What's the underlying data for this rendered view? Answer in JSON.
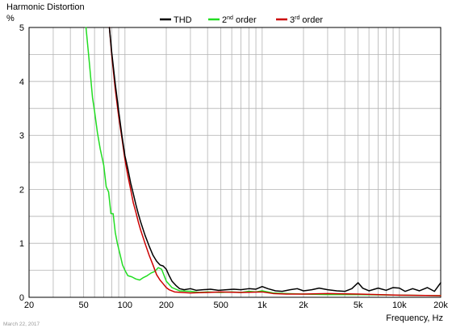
{
  "chart_data": {
    "type": "line",
    "title": "Harmonic Distortion",
    "ylabel": "%",
    "xlabel": "Frequency, Hz",
    "x_scale": "log",
    "xlim": [
      20,
      20000
    ],
    "ylim": [
      0,
      5
    ],
    "grid": true,
    "legend_position": "top-center",
    "date_note": "March 22, 2017",
    "x_ticks": [
      {
        "value": 20,
        "label": "20"
      },
      {
        "value": 50,
        "label": "50"
      },
      {
        "value": 100,
        "label": "100"
      },
      {
        "value": 200,
        "label": "200"
      },
      {
        "value": 500,
        "label": "500"
      },
      {
        "value": 1000,
        "label": "1k"
      },
      {
        "value": 2000,
        "label": "2k"
      },
      {
        "value": 5000,
        "label": "5k"
      },
      {
        "value": 10000,
        "label": "10k"
      },
      {
        "value": 20000,
        "label": "20k"
      }
    ],
    "y_ticks": [
      {
        "value": 0,
        "label": "0"
      },
      {
        "value": 1,
        "label": "1"
      },
      {
        "value": 2,
        "label": "2"
      },
      {
        "value": 3,
        "label": "3"
      },
      {
        "value": 4,
        "label": "4"
      },
      {
        "value": 5,
        "label": "5"
      }
    ],
    "series": [
      {
        "name": "THD",
        "legend_base": "THD",
        "legend_sup": "",
        "legend_suffix": "",
        "color": "#000000",
        "points": [
          [
            77,
            5.0
          ],
          [
            80,
            4.55
          ],
          [
            85,
            3.95
          ],
          [
            90,
            3.45
          ],
          [
            95,
            3.0
          ],
          [
            100,
            2.62
          ],
          [
            105,
            2.38
          ],
          [
            110,
            2.12
          ],
          [
            115,
            1.92
          ],
          [
            120,
            1.72
          ],
          [
            125,
            1.55
          ],
          [
            130,
            1.4
          ],
          [
            140,
            1.15
          ],
          [
            150,
            0.95
          ],
          [
            160,
            0.78
          ],
          [
            170,
            0.67
          ],
          [
            180,
            0.6
          ],
          [
            190,
            0.58
          ],
          [
            200,
            0.52
          ],
          [
            210,
            0.4
          ],
          [
            220,
            0.3
          ],
          [
            235,
            0.22
          ],
          [
            250,
            0.16
          ],
          [
            270,
            0.14
          ],
          [
            300,
            0.16
          ],
          [
            330,
            0.13
          ],
          [
            370,
            0.14
          ],
          [
            420,
            0.15
          ],
          [
            480,
            0.13
          ],
          [
            550,
            0.14
          ],
          [
            620,
            0.15
          ],
          [
            700,
            0.14
          ],
          [
            800,
            0.16
          ],
          [
            900,
            0.15
          ],
          [
            1000,
            0.2
          ],
          [
            1100,
            0.16
          ],
          [
            1250,
            0.12
          ],
          [
            1400,
            0.11
          ],
          [
            1600,
            0.14
          ],
          [
            1800,
            0.16
          ],
          [
            2000,
            0.12
          ],
          [
            2300,
            0.14
          ],
          [
            2600,
            0.17
          ],
          [
            3000,
            0.14
          ],
          [
            3500,
            0.12
          ],
          [
            4000,
            0.11
          ],
          [
            4500,
            0.16
          ],
          [
            5000,
            0.27
          ],
          [
            5400,
            0.17
          ],
          [
            6000,
            0.12
          ],
          [
            7000,
            0.17
          ],
          [
            8000,
            0.13
          ],
          [
            9000,
            0.18
          ],
          [
            10000,
            0.17
          ],
          [
            11000,
            0.11
          ],
          [
            12500,
            0.16
          ],
          [
            14000,
            0.12
          ],
          [
            16000,
            0.18
          ],
          [
            18000,
            0.11
          ],
          [
            20000,
            0.27
          ]
        ]
      },
      {
        "name": "2nd order",
        "legend_base": "2",
        "legend_sup": "nd",
        "legend_suffix": " order",
        "color": "#22dd22",
        "points": [
          [
            52,
            5.0
          ],
          [
            55,
            4.35
          ],
          [
            58,
            3.7
          ],
          [
            60,
            3.45
          ],
          [
            63,
            3.05
          ],
          [
            66,
            2.75
          ],
          [
            70,
            2.45
          ],
          [
            73,
            2.05
          ],
          [
            76,
            1.95
          ],
          [
            79,
            1.55
          ],
          [
            82,
            1.55
          ],
          [
            85,
            1.2
          ],
          [
            88,
            1.0
          ],
          [
            92,
            0.8
          ],
          [
            96,
            0.6
          ],
          [
            100,
            0.5
          ],
          [
            105,
            0.4
          ],
          [
            112,
            0.38
          ],
          [
            120,
            0.34
          ],
          [
            128,
            0.32
          ],
          [
            135,
            0.36
          ],
          [
            145,
            0.4
          ],
          [
            155,
            0.45
          ],
          [
            165,
            0.48
          ],
          [
            175,
            0.55
          ],
          [
            185,
            0.52
          ],
          [
            200,
            0.3
          ],
          [
            220,
            0.18
          ],
          [
            250,
            0.12
          ],
          [
            300,
            0.11
          ],
          [
            350,
            0.09
          ],
          [
            400,
            0.1
          ],
          [
            500,
            0.09
          ],
          [
            600,
            0.1
          ],
          [
            700,
            0.09
          ],
          [
            800,
            0.11
          ],
          [
            900,
            0.1
          ],
          [
            1000,
            0.12
          ],
          [
            1200,
            0.08
          ],
          [
            1500,
            0.07
          ],
          [
            2000,
            0.06
          ],
          [
            3000,
            0.05
          ],
          [
            5000,
            0.05
          ],
          [
            10000,
            0.04
          ],
          [
            20000,
            0.03
          ]
        ]
      },
      {
        "name": "3rd order",
        "legend_base": "3",
        "legend_sup": "rd",
        "legend_suffix": " order",
        "color": "#cc0000",
        "points": [
          [
            77,
            5.0
          ],
          [
            80,
            4.5
          ],
          [
            85,
            3.85
          ],
          [
            90,
            3.35
          ],
          [
            95,
            2.95
          ],
          [
            100,
            2.55
          ],
          [
            105,
            2.25
          ],
          [
            110,
            2.0
          ],
          [
            115,
            1.75
          ],
          [
            120,
            1.58
          ],
          [
            125,
            1.4
          ],
          [
            130,
            1.25
          ],
          [
            140,
            1.0
          ],
          [
            150,
            0.78
          ],
          [
            160,
            0.6
          ],
          [
            170,
            0.42
          ],
          [
            180,
            0.32
          ],
          [
            190,
            0.25
          ],
          [
            200,
            0.18
          ],
          [
            210,
            0.14
          ],
          [
            230,
            0.1
          ],
          [
            260,
            0.09
          ],
          [
            300,
            0.08
          ],
          [
            400,
            0.09
          ],
          [
            500,
            0.1
          ],
          [
            700,
            0.09
          ],
          [
            1000,
            0.1
          ],
          [
            1200,
            0.07
          ],
          [
            1500,
            0.06
          ],
          [
            2000,
            0.06
          ],
          [
            3000,
            0.07
          ],
          [
            5000,
            0.06
          ],
          [
            10000,
            0.04
          ],
          [
            20000,
            0.03
          ]
        ]
      }
    ]
  }
}
